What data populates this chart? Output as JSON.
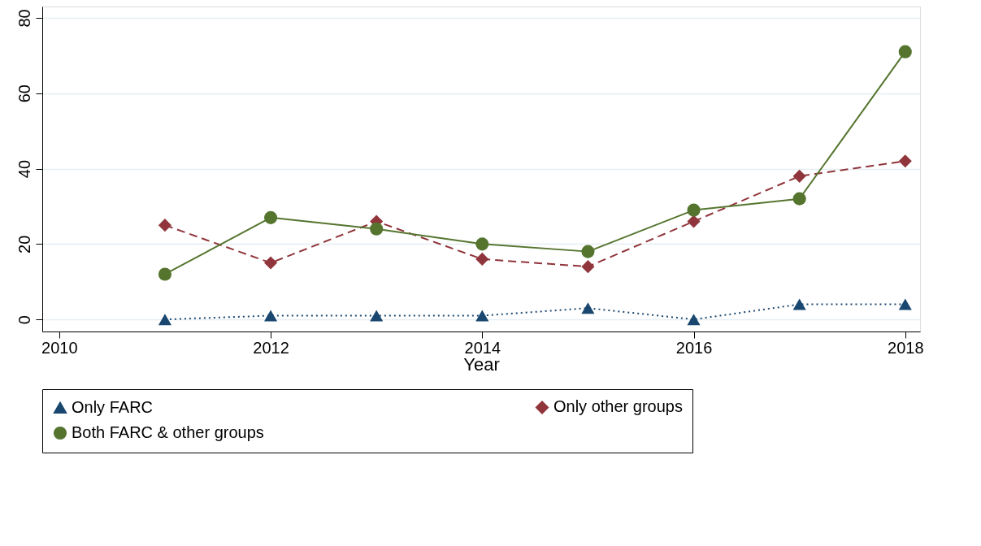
{
  "chart_data": {
    "type": "line",
    "xlabel": "Year",
    "x": [
      2011,
      2012,
      2013,
      2014,
      2015,
      2016,
      2017,
      2018
    ],
    "series": [
      {
        "name": "Only FARC",
        "color": "#1a476f",
        "marker": "triangle",
        "line_style": "dotted",
        "values": [
          0,
          1,
          1,
          1,
          3,
          0,
          4,
          4
        ]
      },
      {
        "name": "Only other groups",
        "color": "#90353b",
        "marker": "diamond",
        "line_style": "dashed",
        "values": [
          25,
          15,
          26,
          16,
          14,
          26,
          38,
          42
        ]
      },
      {
        "name": "Both FARC & other groups",
        "color": "#55752f",
        "marker": "circle",
        "line_style": "solid",
        "values": [
          12,
          27,
          24,
          20,
          18,
          29,
          32,
          71
        ]
      }
    ],
    "xlim": [
      2009.84,
      2018.14
    ],
    "xticks": [
      2010,
      2012,
      2014,
      2016,
      2018
    ],
    "ylim": [
      -3.2,
      83
    ],
    "yticks": [
      0,
      20,
      40,
      60,
      80
    ],
    "grid": "y",
    "legend": "bottom"
  }
}
